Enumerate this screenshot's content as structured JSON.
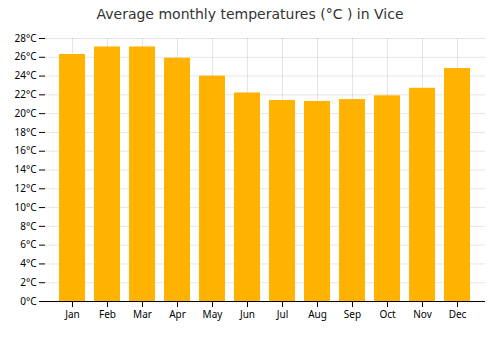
{
  "chart_data": {
    "type": "bar",
    "title": "Average monthly temperatures (°C ) in Vice",
    "categories": [
      "Jan",
      "Feb",
      "Mar",
      "Apr",
      "May",
      "Jun",
      "Jul",
      "Aug",
      "Sep",
      "Oct",
      "Nov",
      "Dec"
    ],
    "values": [
      26.3,
      27.1,
      27.1,
      25.9,
      24.0,
      22.2,
      21.4,
      21.3,
      21.5,
      21.9,
      22.7,
      24.8
    ],
    "color": "#FFB300",
    "ylim": [
      0,
      28
    ],
    "yticks": [
      {
        "value": 0,
        "label": "0°C"
      },
      {
        "value": 2,
        "label": "2°C"
      },
      {
        "value": 4,
        "label": "4°C"
      },
      {
        "value": 6,
        "label": "6°C"
      },
      {
        "value": 8,
        "label": "8°C"
      },
      {
        "value": 10,
        "label": "10°C"
      },
      {
        "value": 12,
        "label": "12°C"
      },
      {
        "value": 14,
        "label": "14°C"
      },
      {
        "value": 16,
        "label": "16°C"
      },
      {
        "value": 18,
        "label": "18°C"
      },
      {
        "value": 20,
        "label": "20°C"
      },
      {
        "value": 22,
        "label": "22°C"
      },
      {
        "value": 24,
        "label": "24°C"
      },
      {
        "value": 26,
        "label": "26°C"
      },
      {
        "value": 28,
        "label": "28°C"
      }
    ],
    "grid": true
  }
}
